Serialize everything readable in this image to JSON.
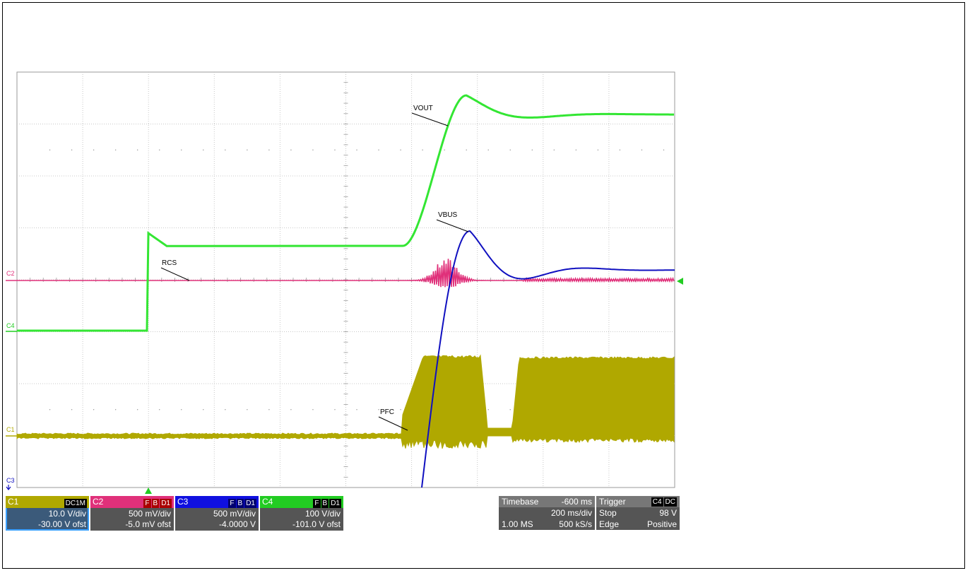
{
  "chart_data": {
    "type": "line",
    "title": "",
    "xlabel": "",
    "ylabel": "",
    "divisions": {
      "x": 10,
      "y": 8
    },
    "grid": true,
    "series": [
      {
        "name": "VOUT",
        "channel": "C4",
        "color": "#33e633"
      },
      {
        "name": "VBUS",
        "channel": "C3",
        "color": "#1010c0"
      },
      {
        "name": "RCS",
        "channel": "C2",
        "color": "#e0307a"
      },
      {
        "name": "PFC",
        "channel": "C1",
        "color": "#b0a800"
      }
    ],
    "annotations": [
      "VOUT",
      "VBUS",
      "RCS",
      "PFC"
    ]
  },
  "markers": {
    "c1": "C1",
    "c2": "C2",
    "c3": "C3",
    "c4": "C4"
  },
  "channels": [
    {
      "label": "C1",
      "tags": [
        "DC1M"
      ],
      "scale": "10.0 V/div",
      "offset": "-30.00 V ofst",
      "color": "#b0a800"
    },
    {
      "label": "C2",
      "tags": [
        "F",
        "B",
        "D1"
      ],
      "scale": "500 mV/div",
      "offset": "-5.0 mV ofst",
      "color": "#e0307a"
    },
    {
      "label": "C3",
      "tags": [
        "F",
        "B",
        "D1"
      ],
      "scale": "500 mV/div",
      "offset": "-4.0000 V",
      "color": "#1010e0"
    },
    {
      "label": "C4",
      "tags": [
        "F",
        "B",
        "D1"
      ],
      "scale": "100 V/div",
      "offset": "-101.0 V ofst",
      "color": "#22cc22"
    }
  ],
  "timebase": {
    "label": "Timebase",
    "delay": "-600 ms",
    "scale": "200 ms/div",
    "samples": "1.00 MS",
    "rate": "500 kS/s"
  },
  "trigger": {
    "label": "Trigger",
    "tags": [
      "C4",
      "DC"
    ],
    "mode": "Stop",
    "level": "98 V",
    "type": "Edge",
    "slope": "Positive"
  }
}
